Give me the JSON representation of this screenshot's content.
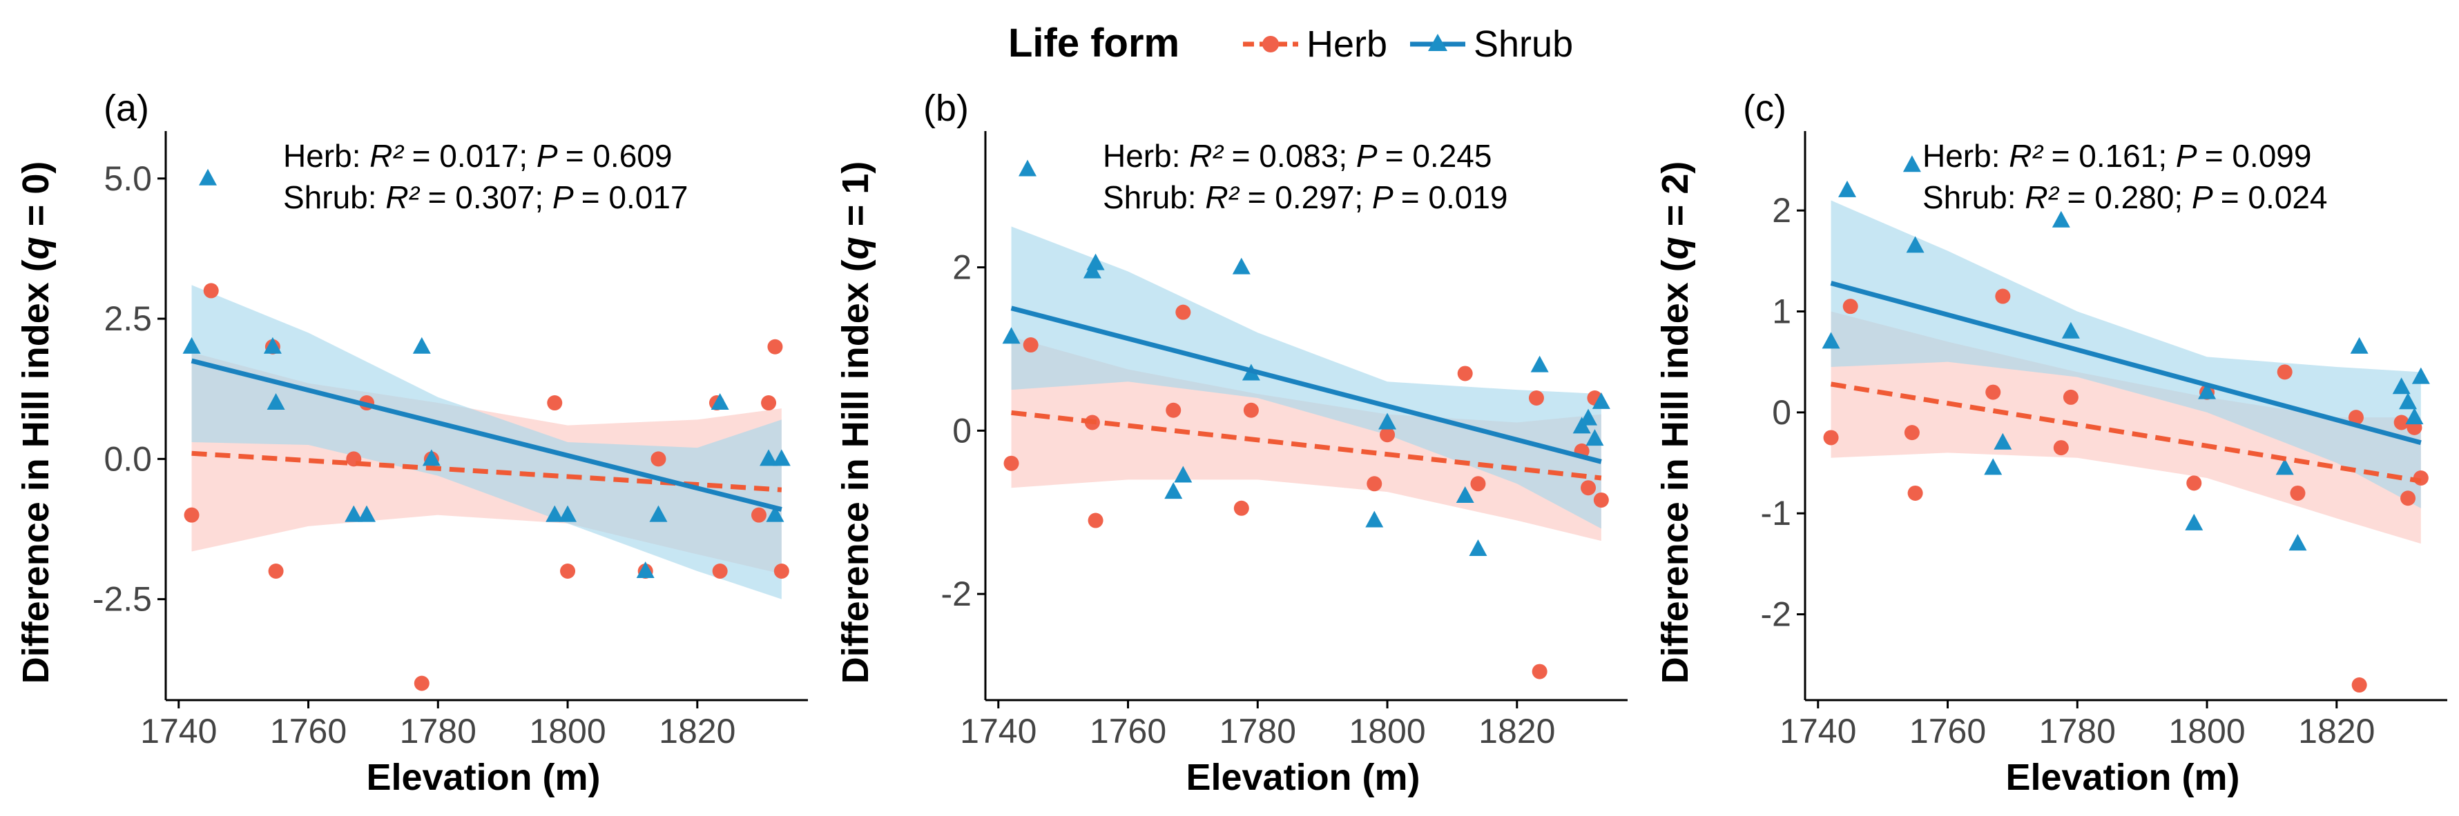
{
  "legend": {
    "title": "Life form",
    "items": [
      {
        "label": "Herb",
        "color": "#F0614A",
        "marker": "circle-marker-icon",
        "line": "dashed"
      },
      {
        "label": "Shrub",
        "color": "#1B8FC7",
        "marker": "triangle-marker-icon",
        "line": "solid"
      }
    ]
  },
  "colors": {
    "herb": "#F0614A",
    "herb_line": "#F05A35",
    "herb_band": "#FBC7C0",
    "shrub": "#1B8FC7",
    "shrub_line": "#1A82BF",
    "shrub_band": "#A4D6EC"
  },
  "chart_data": [
    {
      "type": "scatter",
      "panel": "(a)",
      "xlabel": "Elevation (m)",
      "ylabel_prefix": "Difference in Hill index (",
      "ylabel_var": "q",
      "ylabel_suffix": " = 0)",
      "xlim": [
        1738,
        1836
      ],
      "ylim": [
        -4.3,
        5.6
      ],
      "xticks": [
        1740,
        1760,
        1780,
        1800,
        1820
      ],
      "yticks": [
        -2.5,
        0.0,
        2.5,
        5.0
      ],
      "ytick_labels": [
        "-2.5",
        "0.0",
        "2.5",
        "5.0"
      ],
      "annotations": {
        "herb": {
          "group": "Herb: ",
          "r2_label": "R² ",
          "r2_value": "= 0.017; ",
          "p_label": "P ",
          "p_value": "= 0.609"
        },
        "shrub": {
          "group": "Shrub: ",
          "r2_label": "R² ",
          "r2_value": "= 0.307; ",
          "p_label": "P ",
          "p_value": "= 0.017"
        }
      },
      "series": [
        {
          "name": "Herb",
          "x": [
            1742,
            1745,
            1754.5,
            1755,
            1767,
            1769,
            1777.5,
            1779,
            1798,
            1800,
            1812,
            1814,
            1823,
            1823.5,
            1829.5,
            1831,
            1832,
            1833
          ],
          "y": [
            -1.0,
            3.0,
            2.0,
            -2.0,
            0.0,
            1.0,
            -4.0,
            0.0,
            1.0,
            -2.0,
            -2.0,
            0.0,
            1.0,
            -2.0,
            -1.0,
            1.0,
            2.0,
            -2.0
          ],
          "fit": {
            "x": [
              1742,
              1833
            ],
            "y": [
              0.1,
              -0.55
            ]
          },
          "ci": {
            "x": [
              1742,
              1760,
              1780,
              1800,
              1820,
              1833
            ],
            "lower": [
              -1.65,
              -1.2,
              -1.0,
              -1.15,
              -1.7,
              -2.05
            ],
            "upper": [
              1.9,
              1.35,
              1.0,
              0.6,
              0.7,
              0.9
            ]
          }
        },
        {
          "name": "Shrub",
          "x": [
            1742,
            1744.5,
            1754.5,
            1755,
            1767,
            1769,
            1777.5,
            1779,
            1798,
            1800,
            1812,
            1814,
            1823.5,
            1831,
            1832,
            1833
          ],
          "y": [
            2.0,
            5.0,
            2.0,
            1.0,
            -1.0,
            -1.0,
            2.0,
            0.0,
            -1.0,
            -1.0,
            -2.0,
            -1.0,
            1.0,
            0.0,
            -1.0,
            0.0
          ],
          "fit": {
            "x": [
              1742,
              1833
            ],
            "y": [
              1.75,
              -0.9
            ]
          },
          "ci": {
            "x": [
              1742,
              1760,
              1780,
              1800,
              1820,
              1833
            ],
            "lower": [
              0.3,
              0.25,
              -0.3,
              -1.15,
              -2.0,
              -2.5
            ],
            "upper": [
              3.1,
              2.25,
              1.1,
              0.3,
              0.2,
              0.7
            ]
          }
        }
      ]
    },
    {
      "type": "scatter",
      "panel": "(b)",
      "xlabel": "Elevation (m)",
      "ylabel_prefix": "Difference in Hill index (",
      "ylabel_var": "q",
      "ylabel_suffix": " = 1)",
      "xlim": [
        1738,
        1836
      ],
      "ylim": [
        -3.3,
        3.5
      ],
      "xticks": [
        1740,
        1760,
        1780,
        1800,
        1820
      ],
      "yticks": [
        -2,
        0,
        2
      ],
      "ytick_labels": [
        "-2",
        "0",
        "2"
      ],
      "annotations": {
        "herb": {
          "group": "Herb: ",
          "r2_label": "R² ",
          "r2_value": "= 0.083; ",
          "p_label": "P ",
          "p_value": "= 0.245"
        },
        "shrub": {
          "group": "Shrub: ",
          "r2_label": "R² ",
          "r2_value": "= 0.297; ",
          "p_label": "P ",
          "p_value": "= 0.019"
        }
      },
      "series": [
        {
          "name": "Herb",
          "x": [
            1742,
            1745,
            1754.5,
            1755,
            1767,
            1768.5,
            1777.5,
            1779,
            1798,
            1800,
            1812,
            1814,
            1823,
            1823.5,
            1830,
            1831,
            1832,
            1833
          ],
          "y": [
            -0.4,
            1.05,
            0.1,
            -1.1,
            0.25,
            1.45,
            -0.95,
            0.25,
            -0.65,
            -0.05,
            0.7,
            -0.65,
            0.4,
            -2.95,
            -0.25,
            -0.7,
            0.4,
            -0.85
          ],
          "fit": {
            "x": [
              1742,
              1833
            ],
            "y": [
              0.22,
              -0.58
            ]
          },
          "ci": {
            "x": [
              1742,
              1760,
              1780,
              1800,
              1820,
              1833
            ],
            "lower": [
              -0.7,
              -0.6,
              -0.6,
              -0.75,
              -1.1,
              -1.35
            ],
            "upper": [
              1.15,
              0.75,
              0.45,
              0.2,
              0.1,
              0.2
            ]
          }
        },
        {
          "name": "Shrub",
          "x": [
            1742,
            1744.5,
            1754.5,
            1755,
            1767,
            1768.5,
            1777.5,
            1779,
            1798,
            1800,
            1812,
            1814,
            1823.5,
            1830,
            1831,
            1832,
            1833
          ],
          "y": [
            1.15,
            3.2,
            1.95,
            2.05,
            -0.75,
            -0.55,
            2.0,
            0.7,
            -1.1,
            0.1,
            -0.8,
            -1.45,
            0.8,
            0.05,
            0.15,
            -0.1,
            0.35
          ],
          "fit": {
            "x": [
              1742,
              1833
            ],
            "y": [
              1.5,
              -0.38
            ]
          },
          "ci": {
            "x": [
              1742,
              1760,
              1780,
              1800,
              1820,
              1833
            ],
            "lower": [
              0.5,
              0.6,
              0.4,
              -0.05,
              -0.65,
              -1.2
            ],
            "upper": [
              2.5,
              1.95,
              1.2,
              0.6,
              0.5,
              0.45
            ]
          }
        }
      ]
    },
    {
      "type": "scatter",
      "panel": "(c)",
      "xlabel": "Elevation (m)",
      "ylabel_prefix": "Difference in Hill index (",
      "ylabel_var": "q",
      "ylabel_suffix": " = 2)",
      "xlim": [
        1738,
        1836
      ],
      "ylim": [
        -2.85,
        2.65
      ],
      "xticks": [
        1740,
        1760,
        1780,
        1800,
        1820
      ],
      "yticks": [
        -2,
        -1,
        0,
        1,
        2
      ],
      "ytick_labels": [
        "-2",
        "-1",
        "0",
        "1",
        "2"
      ],
      "annotations": {
        "herb": {
          "group": "Herb: ",
          "r2_label": "R² ",
          "r2_value": "= 0.161; ",
          "p_label": "P ",
          "p_value": "= 0.099"
        },
        "shrub": {
          "group": "Shrub: ",
          "r2_label": "R² ",
          "r2_value": "= 0.280; ",
          "p_label": "P ",
          "p_value": "= 0.024"
        }
      },
      "series": [
        {
          "name": "Herb",
          "x": [
            1742,
            1745,
            1754.5,
            1755,
            1767,
            1768.5,
            1777.5,
            1779,
            1798,
            1800,
            1812,
            1814,
            1823,
            1823.5,
            1830,
            1831,
            1832,
            1833
          ],
          "y": [
            -0.25,
            1.05,
            -0.2,
            -0.8,
            0.2,
            1.15,
            -0.35,
            0.15,
            -0.7,
            0.2,
            0.4,
            -0.8,
            -0.05,
            -2.7,
            -0.1,
            -0.85,
            -0.15,
            -0.65
          ],
          "fit": {
            "x": [
              1742,
              1833
            ],
            "y": [
              0.28,
              -0.68
            ]
          },
          "ci": {
            "x": [
              1742,
              1760,
              1780,
              1800,
              1820,
              1833
            ],
            "lower": [
              -0.45,
              -0.4,
              -0.45,
              -0.65,
              -1.05,
              -1.3
            ],
            "upper": [
              1.0,
              0.7,
              0.4,
              0.15,
              -0.05,
              -0.05
            ]
          }
        },
        {
          "name": "Shrub",
          "x": [
            1742,
            1744.5,
            1754.5,
            1755,
            1767,
            1768.5,
            1777.5,
            1779,
            1798,
            1800,
            1812,
            1814,
            1823.5,
            1830,
            1831,
            1832,
            1833
          ],
          "y": [
            0.7,
            2.2,
            2.45,
            1.65,
            -0.55,
            -0.3,
            1.9,
            0.8,
            -1.1,
            0.2,
            -0.55,
            -1.3,
            0.65,
            0.25,
            0.1,
            -0.05,
            0.35
          ],
          "fit": {
            "x": [
              1742,
              1833
            ],
            "y": [
              1.28,
              -0.3
            ]
          },
          "ci": {
            "x": [
              1742,
              1760,
              1780,
              1800,
              1820,
              1833
            ],
            "lower": [
              0.45,
              0.5,
              0.35,
              0.0,
              -0.5,
              -0.95
            ],
            "upper": [
              2.1,
              1.6,
              1.0,
              0.55,
              0.45,
              0.4
            ]
          }
        }
      ]
    }
  ]
}
